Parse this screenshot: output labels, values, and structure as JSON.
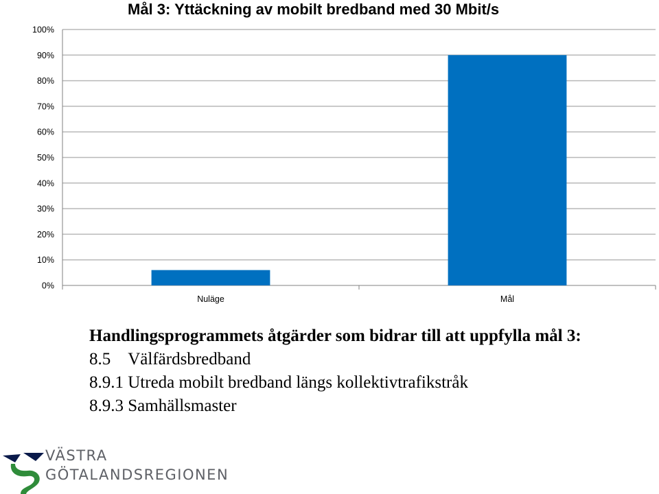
{
  "colors": {
    "bar": "#0070C0",
    "grid": "#B8B8B8"
  },
  "chart_data": {
    "type": "bar",
    "title": "Mål 3: Yttäckning av mobilt bredband med 30 Mbit/s",
    "categories": [
      "Nuläge",
      "Mål"
    ],
    "values": [
      6,
      90
    ],
    "ylim": [
      0,
      100
    ],
    "yticks": [
      "0%",
      "10%",
      "20%",
      "30%",
      "40%",
      "50%",
      "60%",
      "70%",
      "80%",
      "90%",
      "100%"
    ],
    "grid": true,
    "legend": "none"
  },
  "text": {
    "heading": "Handlingsprogrammets åtgärder som bidrar till att uppfylla mål 3:",
    "items": [
      "8.5    Välfärdsbredband",
      "8.9.1 Utreda mobilt bredband längs kollektivtrafikstråk",
      "8.9.3 Samhällsmaster"
    ]
  },
  "logo": {
    "line1": "VÄSTRA",
    "line2": "GÖTALANDSREGIONEN",
    "icon": "vgr-swirl-logo"
  }
}
